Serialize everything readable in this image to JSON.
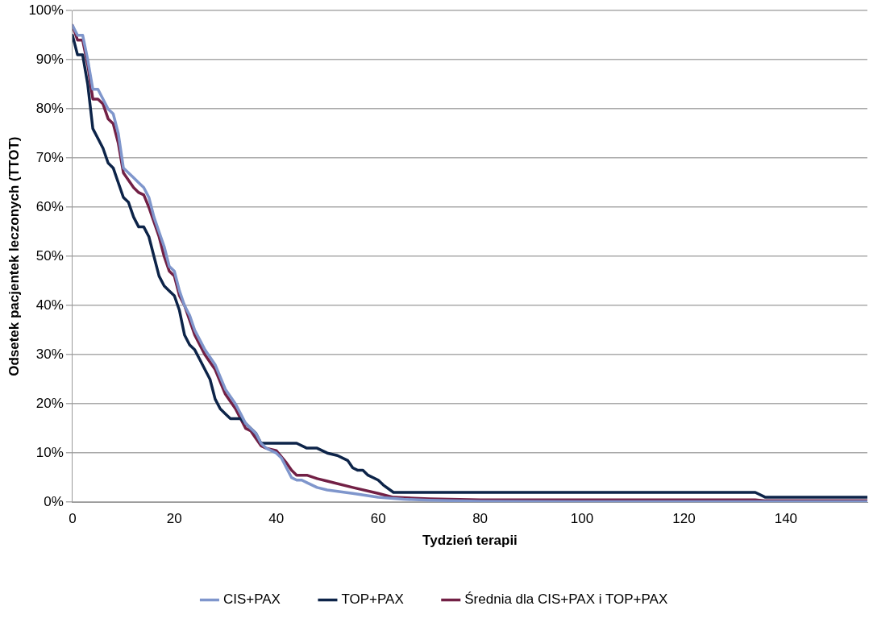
{
  "chart_data": {
    "type": "line",
    "xlabel": "Tydzień terapii",
    "ylabel": "Odsetek pacjentek leczonych (TTOT)",
    "xlim": [
      0,
      156
    ],
    "xticks": [
      0,
      20,
      40,
      60,
      80,
      100,
      120,
      140
    ],
    "ylim": [
      0,
      100
    ],
    "yticks": [
      {
        "value": 0,
        "label": "0%"
      },
      {
        "value": 10,
        "label": "10%"
      },
      {
        "value": 20,
        "label": "20%"
      },
      {
        "value": 30,
        "label": "30%"
      },
      {
        "value": 40,
        "label": "40%"
      },
      {
        "value": 50,
        "label": "50%"
      },
      {
        "value": 60,
        "label": "60%"
      },
      {
        "value": 70,
        "label": "70%"
      },
      {
        "value": 80,
        "label": "80%"
      },
      {
        "value": 90,
        "label": "90%"
      },
      {
        "value": 100,
        "label": "100%"
      }
    ],
    "grid": "y",
    "legend": "bottom",
    "marker": "none",
    "line_style": "solid",
    "series": [
      {
        "name": "CIS+PAX",
        "color": "#7f96cc",
        "x": [
          0,
          1,
          2,
          3,
          4,
          5,
          6,
          7,
          8,
          9,
          10,
          12,
          13,
          14,
          15,
          16,
          17,
          18,
          19,
          20,
          21,
          22,
          23,
          24,
          25,
          26,
          28,
          30,
          32,
          33,
          34,
          35,
          36,
          37,
          38,
          40,
          41,
          42,
          43,
          44,
          45,
          46,
          48,
          50,
          55,
          60,
          65,
          70,
          80,
          100,
          156
        ],
        "values": [
          97,
          95,
          95,
          90,
          84,
          84,
          82,
          80,
          79,
          75,
          68,
          66,
          65,
          64,
          62,
          58,
          55,
          52,
          48,
          47,
          43,
          40,
          38,
          35,
          33,
          31,
          28,
          23,
          20,
          18,
          16,
          15,
          14,
          12,
          11,
          10,
          9,
          7,
          5,
          4.5,
          4.5,
          4,
          3,
          2.5,
          1.8,
          1,
          0.6,
          0.4,
          0.2,
          0.1,
          0.1
        ]
      },
      {
        "name": "TOP+PAX",
        "color": "#0d2449",
        "x": [
          0,
          1,
          2,
          3,
          4,
          5,
          6,
          7,
          8,
          9,
          10,
          11,
          12,
          13,
          14,
          15,
          16,
          17,
          18,
          19,
          20,
          21,
          22,
          23,
          24,
          25,
          26,
          27,
          28,
          29,
          30,
          31,
          33,
          34,
          35,
          36,
          37,
          38,
          44,
          46,
          48,
          50,
          52,
          54,
          55,
          56,
          57,
          58,
          60,
          61,
          63,
          134,
          136,
          156
        ],
        "values": [
          95,
          91,
          91,
          85,
          76,
          74,
          72,
          69,
          68,
          65,
          62,
          61,
          58,
          56,
          56,
          54,
          50,
          46,
          44,
          43,
          42,
          39,
          34,
          32,
          31,
          29,
          27,
          25,
          21,
          19,
          18,
          17,
          17,
          16,
          15,
          14,
          12,
          12,
          12,
          11,
          11,
          10,
          9.5,
          8.5,
          7,
          6.5,
          6.5,
          5.5,
          4.5,
          3.5,
          2,
          2,
          1,
          1
        ]
      },
      {
        "name": "Średnia dla CIS+PAX i TOP+PAX",
        "color": "#722045",
        "x": [
          0,
          1,
          2,
          3,
          4,
          5,
          6,
          7,
          8,
          9,
          10,
          12,
          13,
          14,
          15,
          16,
          17,
          18,
          19,
          20,
          21,
          22,
          23,
          24,
          25,
          26,
          28,
          30,
          32,
          33,
          34,
          35,
          36,
          37,
          38,
          40,
          42,
          43,
          44,
          46,
          48,
          50,
          55,
          60,
          63,
          70,
          80,
          134,
          136,
          156
        ],
        "values": [
          97,
          94,
          94,
          89,
          82,
          82,
          81,
          78,
          77,
          73,
          67,
          64,
          63,
          62.5,
          60,
          57,
          54,
          50,
          47,
          46,
          42,
          40,
          37,
          34,
          32,
          30,
          27,
          22,
          19,
          17,
          15,
          14.5,
          13,
          11.5,
          11,
          10.5,
          8,
          6.5,
          5.5,
          5.5,
          4.8,
          4.3,
          3,
          1.8,
          1,
          0.7,
          0.5,
          0.5,
          0.3,
          0.3
        ]
      }
    ]
  }
}
